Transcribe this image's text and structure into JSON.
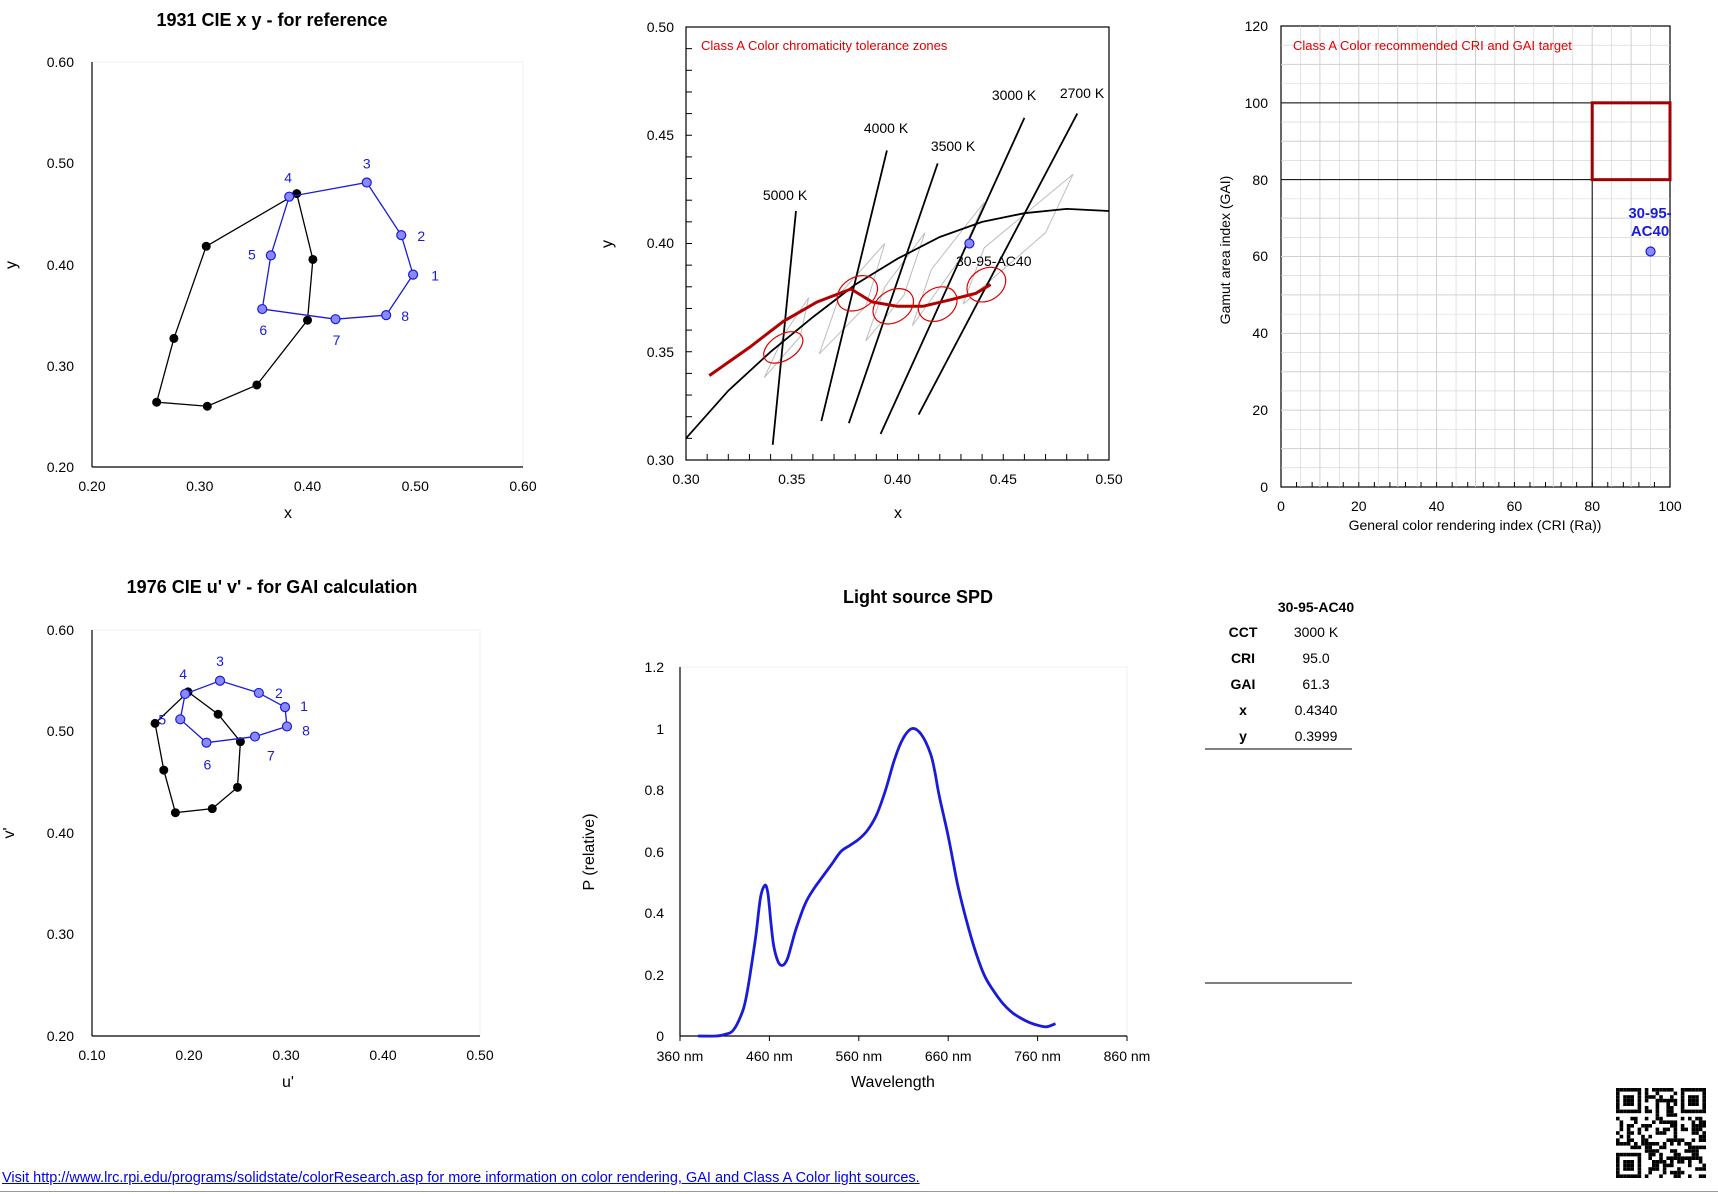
{
  "footer": {
    "link_text": "Visit http://www.lrc.rpi.edu/programs/solidstate/colorResearch.asp for more information on color rendering, GAI and Class A Color light sources."
  },
  "colors": {
    "reference": "#000000",
    "sample": "#1a1adc",
    "sample_fill": "#8a8aff",
    "tolerance": "#e00000",
    "locus": "#b00000",
    "grid": "#d0d0d0"
  },
  "source_table": {
    "header": "30-95-AC40",
    "rows": [
      {
        "label": "CCT",
        "value": "3000 K"
      },
      {
        "label": "CRI",
        "value": "95.0"
      },
      {
        "label": "GAI",
        "value": "61.3"
      },
      {
        "label": "x",
        "value": "0.4340"
      },
      {
        "label": "y",
        "value": "0.3999"
      }
    ]
  },
  "chart_data": [
    {
      "id": "cie1931",
      "type": "scatter",
      "title": "1931 CIE x y - for reference",
      "xlabel": "x",
      "ylabel": "y",
      "xlim": [
        0.2,
        0.6
      ],
      "ylim": [
        0.2,
        0.6
      ],
      "xticks": [
        "0.20",
        "0.30",
        "0.40",
        "0.50",
        "0.60"
      ],
      "yticks": [
        "0.20",
        "0.30",
        "0.40",
        "0.50",
        "0.60"
      ],
      "series": [
        {
          "points": [
            [
              0.39,
              0.47
            ],
            [
              0.405,
              0.405
            ],
            [
              0.4,
              0.345
            ],
            [
              0.353,
              0.281
            ],
            [
              0.307,
              0.26
            ],
            [
              0.26,
              0.264
            ],
            [
              0.276,
              0.327
            ],
            [
              0.306,
              0.418
            ]
          ]
        },
        {
          "labels": [
            "1",
            "2",
            "3",
            "4",
            "5",
            "6",
            "7",
            "8"
          ],
          "points": [
            [
              0.498,
              0.39
            ],
            [
              0.487,
              0.429
            ],
            [
              0.455,
              0.481
            ],
            [
              0.383,
              0.467
            ],
            [
              0.366,
              0.409
            ],
            [
              0.358,
              0.356
            ],
            [
              0.426,
              0.346
            ],
            [
              0.473,
              0.35
            ]
          ]
        }
      ]
    },
    {
      "id": "tolerance",
      "type": "line",
      "title": "",
      "xlabel": "x",
      "ylabel": "y",
      "xlim": [
        0.3,
        0.5
      ],
      "ylim": [
        0.3,
        0.5
      ],
      "xticks": [
        "0.30",
        "0.35",
        "0.40",
        "0.45",
        "0.50"
      ],
      "yticks": [
        "0.30",
        "0.35",
        "0.40",
        "0.45",
        "0.50"
      ],
      "annotation": "Class A Color chromaticity tolerance zones",
      "cct_lines": [
        {
          "label": "5000 K",
          "from": [
            0.341,
            0.307
          ],
          "to": [
            0.352,
            0.415
          ]
        },
        {
          "label": "4000 K",
          "from": [
            0.364,
            0.318
          ],
          "to": [
            0.395,
            0.443
          ]
        },
        {
          "label": "3500 K",
          "from": [
            0.377,
            0.317
          ],
          "to": [
            0.419,
            0.437
          ]
        },
        {
          "label": "3000 K",
          "from": [
            0.392,
            0.312
          ],
          "to": [
            0.46,
            0.458
          ]
        },
        {
          "label": "2700 K",
          "from": [
            0.41,
            0.321
          ],
          "to": [
            0.485,
            0.46
          ]
        }
      ],
      "planckian": [
        [
          0.3,
          0.31
        ],
        [
          0.32,
          0.332
        ],
        [
          0.34,
          0.35
        ],
        [
          0.36,
          0.366
        ],
        [
          0.38,
          0.381
        ],
        [
          0.4,
          0.393
        ],
        [
          0.42,
          0.403
        ],
        [
          0.44,
          0.41
        ],
        [
          0.46,
          0.414
        ],
        [
          0.48,
          0.416
        ],
        [
          0.5,
          0.415
        ]
      ],
      "class_a_locus": [
        [
          0.311,
          0.339
        ],
        [
          0.33,
          0.352
        ],
        [
          0.346,
          0.364
        ],
        [
          0.362,
          0.373
        ],
        [
          0.378,
          0.379
        ],
        [
          0.388,
          0.373
        ],
        [
          0.4,
          0.371
        ],
        [
          0.412,
          0.371
        ],
        [
          0.425,
          0.374
        ],
        [
          0.437,
          0.377
        ],
        [
          0.444,
          0.381
        ]
      ],
      "tolerance_ellipses": [
        {
          "center": [
            0.346,
            0.352
          ],
          "rx": 0.006,
          "ry": 0.01,
          "angle": 58
        },
        {
          "center": [
            0.381,
            0.377
          ],
          "rx": 0.0075,
          "ry": 0.01,
          "angle": 58
        },
        {
          "center": [
            0.398,
            0.371
          ],
          "rx": 0.0075,
          "ry": 0.01,
          "angle": 58
        },
        {
          "center": [
            0.419,
            0.372
          ],
          "rx": 0.0075,
          "ry": 0.0095,
          "angle": 58
        },
        {
          "center": [
            0.442,
            0.381
          ],
          "rx": 0.0075,
          "ry": 0.0095,
          "angle": 58
        }
      ],
      "ansi_quads": [
        [
          [
            0.337,
            0.338
          ],
          [
            0.347,
            0.359
          ],
          [
            0.358,
            0.375
          ],
          [
            0.354,
            0.357
          ]
        ],
        [
          [
            0.363,
            0.349
          ],
          [
            0.373,
            0.377
          ],
          [
            0.394,
            0.4
          ],
          [
            0.385,
            0.371
          ]
        ],
        [
          [
            0.385,
            0.355
          ],
          [
            0.394,
            0.38
          ],
          [
            0.413,
            0.405
          ],
          [
            0.403,
            0.376
          ]
        ],
        [
          [
            0.407,
            0.362
          ],
          [
            0.416,
            0.388
          ],
          [
            0.441,
            0.419
          ],
          [
            0.429,
            0.392
          ]
        ],
        [
          [
            0.431,
            0.372
          ],
          [
            0.441,
            0.398
          ],
          [
            0.483,
            0.432
          ],
          [
            0.47,
            0.405
          ]
        ]
      ],
      "source_point": {
        "label": "30-95-AC40",
        "x": 0.434,
        "y": 0.4
      }
    },
    {
      "id": "cri_gai",
      "type": "scatter",
      "title": "",
      "xlabel": "General color rendering index (CRI (Ra))",
      "ylabel": "Gamut area index (GAI)",
      "xlim": [
        0,
        100
      ],
      "ylim": [
        0,
        120
      ],
      "xticks": [
        "0",
        "20",
        "40",
        "60",
        "80",
        "100"
      ],
      "yticks": [
        "0",
        "20",
        "40",
        "60",
        "80",
        "100",
        "120"
      ],
      "annotation": "Class A Color recommended CRI and GAI target",
      "target": {
        "cri": [
          80,
          100
        ],
        "gai": [
          80,
          100
        ]
      },
      "point": {
        "label_line1": "30-95-",
        "label_line2": "AC40",
        "cri": 95.0,
        "gai": 61.3
      }
    },
    {
      "id": "cie1976",
      "type": "scatter",
      "title": "1976 CIE u' v' - for GAI calculation",
      "xlabel": "u'",
      "ylabel": "v'",
      "xlim": [
        0.1,
        0.5
      ],
      "ylim": [
        0.2,
        0.6
      ],
      "xticks": [
        "0.10",
        "0.20",
        "0.30",
        "0.40",
        "0.50"
      ],
      "yticks": [
        "0.20",
        "0.30",
        "0.40",
        "0.50",
        "0.60"
      ],
      "series": [
        {
          "points": [
            [
              0.199,
              0.539
            ],
            [
              0.23,
              0.517
            ],
            [
              0.253,
              0.49
            ],
            [
              0.25,
              0.445
            ],
            [
              0.224,
              0.424
            ],
            [
              0.186,
              0.42
            ],
            [
              0.174,
              0.462
            ],
            [
              0.165,
              0.508
            ]
          ]
        },
        {
          "labels": [
            "1",
            "2",
            "3",
            "4",
            "5",
            "6",
            "7",
            "8"
          ],
          "points": [
            [
              0.299,
              0.524
            ],
            [
              0.272,
              0.538
            ],
            [
              0.232,
              0.55
            ],
            [
              0.196,
              0.537
            ],
            [
              0.191,
              0.512
            ],
            [
              0.218,
              0.489
            ],
            [
              0.268,
              0.495
            ],
            [
              0.301,
              0.505
            ]
          ]
        }
      ]
    },
    {
      "id": "spd",
      "type": "line",
      "title": "Light source SPD",
      "xlabel": "Wavelength",
      "ylabel": "P (relative)",
      "xlim": [
        360,
        860
      ],
      "ylim": [
        0,
        1.2
      ],
      "xticks": [
        "360 nm",
        "460 nm",
        "560 nm",
        "660 nm",
        "760 nm",
        "860 nm"
      ],
      "yticks": [
        "0",
        "0.2",
        "0.4",
        "0.6",
        "0.8",
        "1",
        "1.2"
      ],
      "series": [
        {
          "x": [
            380,
            400,
            410,
            420,
            430,
            435,
            440,
            445,
            450,
            455,
            458,
            460,
            462,
            465,
            470,
            475,
            480,
            485,
            490,
            500,
            510,
            520,
            530,
            540,
            550,
            560,
            570,
            580,
            590,
            600,
            610,
            620,
            630,
            640,
            645,
            650,
            660,
            670,
            680,
            690,
            700,
            710,
            720,
            730,
            740,
            750,
            760,
            770,
            780
          ],
          "y": [
            0,
            0,
            0.005,
            0.02,
            0.08,
            0.14,
            0.23,
            0.33,
            0.45,
            0.49,
            0.47,
            0.42,
            0.36,
            0.29,
            0.24,
            0.23,
            0.25,
            0.3,
            0.35,
            0.43,
            0.48,
            0.52,
            0.56,
            0.6,
            0.62,
            0.64,
            0.67,
            0.72,
            0.8,
            0.9,
            0.97,
            1.0,
            0.98,
            0.92,
            0.86,
            0.78,
            0.65,
            0.5,
            0.38,
            0.28,
            0.2,
            0.15,
            0.11,
            0.08,
            0.06,
            0.045,
            0.035,
            0.03,
            0.04
          ]
        }
      ]
    }
  ]
}
